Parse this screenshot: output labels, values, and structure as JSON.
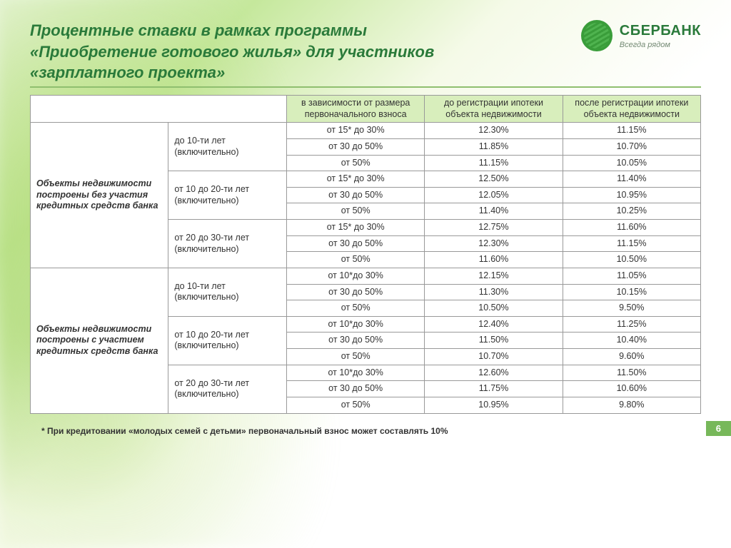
{
  "title": "Процентные ставки в рамках программы «Приобретение готового жилья» для участников «зарплатного проекта»",
  "logo": {
    "name": "СБЕРБАНК",
    "tagline": "Всегда рядом"
  },
  "table": {
    "headers": {
      "deposit": "в зависимости от размера первоначального взноса",
      "before": "до регистрации ипотеки объекта недвижимости",
      "after": "после регистрации ипотеки объекта недвижимости"
    },
    "groups": [
      {
        "label": "Объекты недвижимости построены без участия кредитных средств банка",
        "terms": [
          {
            "label": "до 10-ти лет (включительно)",
            "rows": [
              {
                "dep": "от 15* до 30%",
                "before": "12.30%",
                "after": "11.15%"
              },
              {
                "dep": "от 30 до 50%",
                "before": "11.85%",
                "after": "10.70%"
              },
              {
                "dep": "от 50%",
                "before": "11.15%",
                "after": "10.05%"
              }
            ]
          },
          {
            "label": "от 10 до 20-ти лет (включительно)",
            "rows": [
              {
                "dep": "от 15* до 30%",
                "before": "12.50%",
                "after": "11.40%"
              },
              {
                "dep": "от 30 до 50%",
                "before": "12.05%",
                "after": "10.95%"
              },
              {
                "dep": "от 50%",
                "before": "11.40%",
                "after": "10.25%"
              }
            ]
          },
          {
            "label": "от 20 до 30-ти лет (включительно)",
            "rows": [
              {
                "dep": "от 15* до 30%",
                "before": "12.75%",
                "after": "11.60%"
              },
              {
                "dep": "от 30 до 50%",
                "before": "12.30%",
                "after": "11.15%"
              },
              {
                "dep": "от 50%",
                "before": "11.60%",
                "after": "10.50%"
              }
            ]
          }
        ]
      },
      {
        "label": "Объекты недвижимости построены с участием кредитных средств банка",
        "terms": [
          {
            "label": "до 10-ти лет (включительно)",
            "rows": [
              {
                "dep": "от 10*до 30%",
                "before": "12.15%",
                "after": "11.05%"
              },
              {
                "dep": "от 30 до 50%",
                "before": "11.30%",
                "after": "10.15%"
              },
              {
                "dep": "от 50%",
                "before": "10.50%",
                "after": "9.50%"
              }
            ]
          },
          {
            "label": "от 10 до 20-ти лет (включительно)",
            "rows": [
              {
                "dep": "от 10*до 30%",
                "before": "12.40%",
                "after": "11.25%"
              },
              {
                "dep": "от 30 до 50%",
                "before": "11.50%",
                "after": "10.40%"
              },
              {
                "dep": "от 50%",
                "before": "10.70%",
                "after": "9.60%"
              }
            ]
          },
          {
            "label": "от 20 до 30-ти лет (включительно)",
            "rows": [
              {
                "dep": "от 10*до 30%",
                "before": "12.60%",
                "after": "11.50%"
              },
              {
                "dep": "от 30 до 50%",
                "before": "11.75%",
                "after": "10.60%"
              },
              {
                "dep": "от 50%",
                "before": "10.95%",
                "after": "9.80%"
              }
            ]
          }
        ]
      }
    ]
  },
  "footnote": "* При кредитовании «молодых семей с детьми» первоначальный  взнос  может составлять 10%",
  "page": "6",
  "colors": {
    "brand_green": "#2a7a3a",
    "header_bg": "#d8eebc",
    "rule": "#8fbf6f",
    "badge": "#77b85a"
  }
}
